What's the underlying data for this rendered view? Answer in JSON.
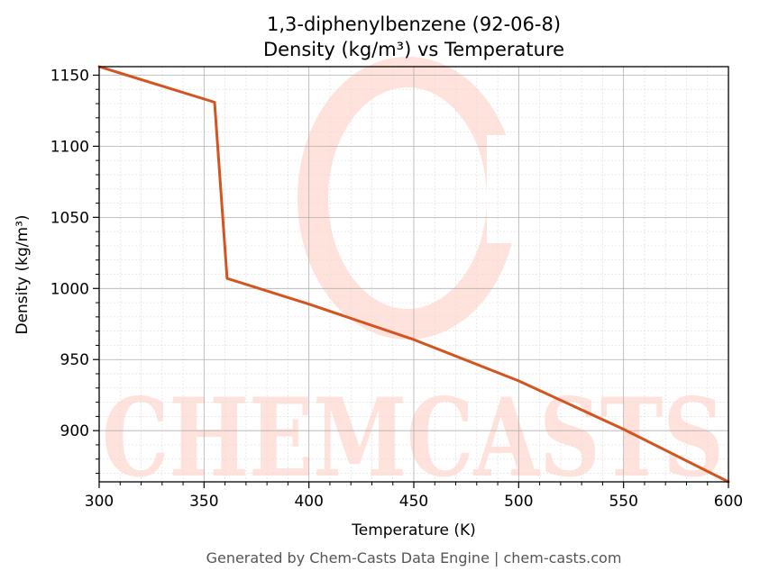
{
  "colors": {
    "line": "#d4541f",
    "watermark": "#ffe2dc",
    "grid_major": "#b0b0b0",
    "grid_minor": "#e0e0e0"
  },
  "watermark": {
    "text": "CHEMCASTS"
  },
  "footer": "Generated by Chem-Casts Data Engine | chem-casts.com",
  "chart_data": {
    "type": "line",
    "title": "1,3-diphenylbenzene (92-06-8)",
    "subtitle": "Density (kg/m³) vs Temperature",
    "xlabel": "Temperature (K)",
    "ylabel": "Density (kg/m³)",
    "xlim": [
      300,
      600
    ],
    "ylim": [
      864,
      1156
    ],
    "xticks": [
      300,
      350,
      400,
      450,
      500,
      550,
      600
    ],
    "yticks": [
      900,
      950,
      1000,
      1050,
      1100,
      1150
    ],
    "grid": true,
    "series": [
      {
        "x": [
          300,
          355,
          361,
          400,
          450,
          500,
          550,
          600
        ],
        "y": [
          1156,
          1131,
          1007,
          989,
          964,
          935,
          901,
          864
        ]
      }
    ]
  }
}
